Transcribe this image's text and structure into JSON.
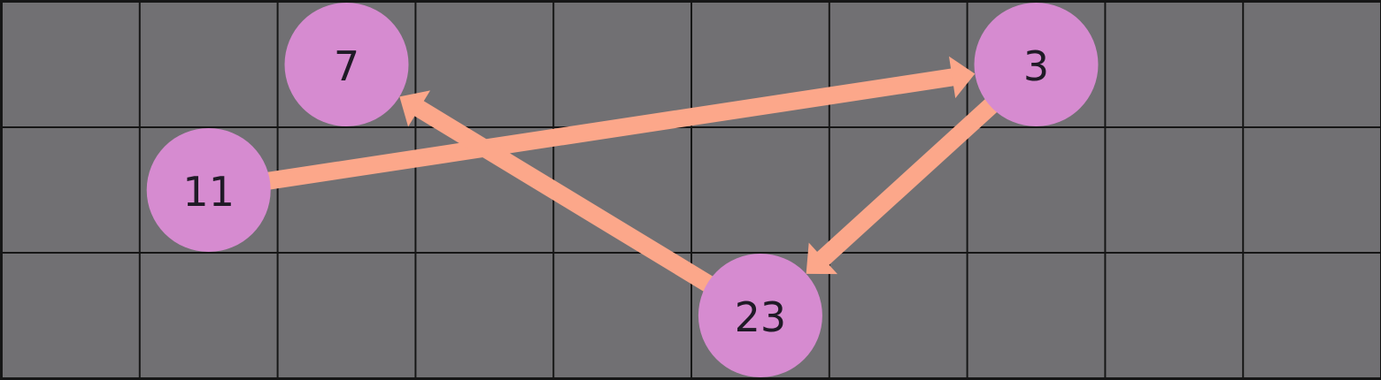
{
  "grid": {
    "columns": 10,
    "rows": 3,
    "cell_fill": "#717073",
    "line_color": "#161616"
  },
  "colors": {
    "node_fill": "#d68bd0",
    "arrow_color": "#fca78a",
    "label_color": "#1f1a26"
  },
  "nodes": [
    {
      "id": "n7",
      "label": "7",
      "col": 2,
      "row": 0
    },
    {
      "id": "n3",
      "label": "3",
      "col": 7,
      "row": 0
    },
    {
      "id": "n11",
      "label": "11",
      "col": 1,
      "row": 1
    },
    {
      "id": "n23",
      "label": "23",
      "col": 5,
      "row": 2
    }
  ],
  "edges": [
    {
      "from": "n11",
      "to": "n3"
    },
    {
      "from": "n3",
      "to": "n23"
    },
    {
      "from": "n23",
      "to": "n7"
    }
  ]
}
